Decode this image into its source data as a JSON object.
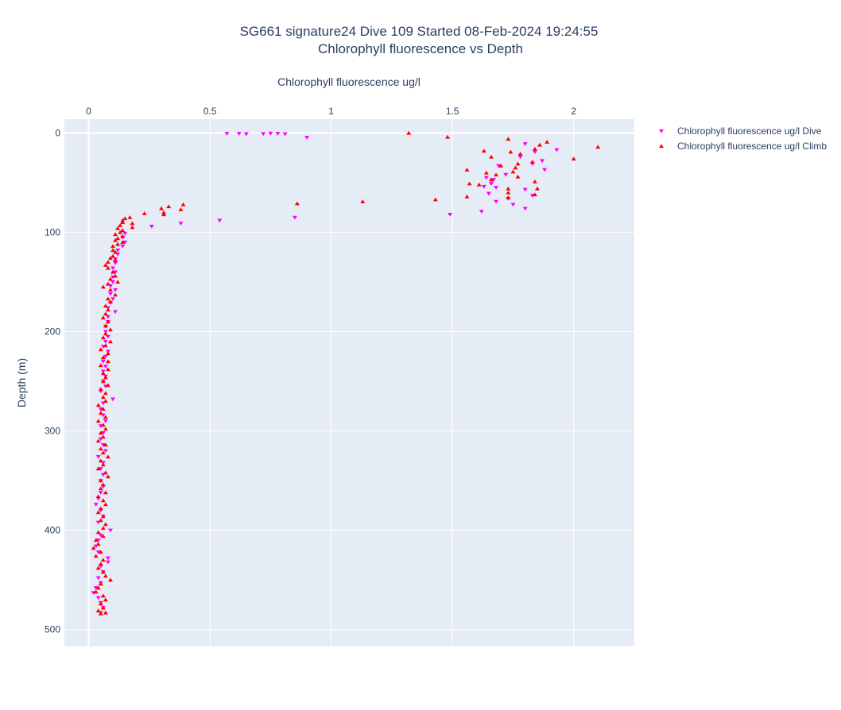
{
  "chart_data": {
    "type": "scatter",
    "title_line1": "SG661 signature24 Dive 109 Started 08-Feb-2024 19:24:55",
    "title_line2": "Chlorophyll fluorescence vs Depth",
    "xlabel": "Chlorophyll fluorescence ug/l",
    "ylabel": "Depth (m)",
    "xlim": [
      -0.1,
      2.25
    ],
    "ylim": [
      517,
      -14
    ],
    "x_ticks": [
      0,
      0.5,
      1,
      1.5,
      2
    ],
    "x_tick_labels": [
      "0",
      "0.5",
      "1",
      "1.5",
      "2"
    ],
    "y_ticks": [
      0,
      100,
      200,
      300,
      400,
      500
    ],
    "y_tick_labels": [
      "0",
      "100",
      "200",
      "300",
      "400",
      "500"
    ],
    "x_axis_side": "top",
    "y_reversed": true,
    "grid": true,
    "legend_position": "top-right",
    "plot_background": "#e5ecf6",
    "series": [
      {
        "name": "Chlorophyll fluorescence ug/l Dive",
        "marker": "triangle-down",
        "color": "#ff00ff",
        "points": [
          [
            0.57,
            0.6
          ],
          [
            0.62,
            0.6
          ],
          [
            0.65,
            1.0
          ],
          [
            0.72,
            0.8
          ],
          [
            0.75,
            0.4
          ],
          [
            0.78,
            0.6
          ],
          [
            0.81,
            1.0
          ],
          [
            0.9,
            4.5
          ],
          [
            1.8,
            11
          ],
          [
            1.84,
            19
          ],
          [
            1.93,
            17
          ],
          [
            1.78,
            24
          ],
          [
            1.87,
            28
          ],
          [
            1.83,
            31
          ],
          [
            1.69,
            33
          ],
          [
            1.88,
            37
          ],
          [
            1.72,
            42
          ],
          [
            1.64,
            45
          ],
          [
            1.67,
            47
          ],
          [
            1.66,
            51
          ],
          [
            1.63,
            54
          ],
          [
            1.68,
            55
          ],
          [
            1.8,
            57
          ],
          [
            1.65,
            61
          ],
          [
            1.83,
            63
          ],
          [
            1.73,
            66
          ],
          [
            1.68,
            69
          ],
          [
            1.75,
            72
          ],
          [
            1.8,
            76
          ],
          [
            1.62,
            79
          ],
          [
            1.49,
            82
          ],
          [
            0.85,
            85
          ],
          [
            0.54,
            88
          ],
          [
            0.38,
            91
          ],
          [
            0.26,
            94
          ],
          [
            0.15,
            101
          ],
          [
            0.14,
            105
          ],
          [
            0.15,
            110
          ],
          [
            0.14,
            114
          ],
          [
            0.12,
            118
          ],
          [
            0.12,
            122
          ],
          [
            0.11,
            127
          ],
          [
            0.11,
            131
          ],
          [
            0.1,
            136
          ],
          [
            0.11,
            140
          ],
          [
            0.1,
            145
          ],
          [
            0.1,
            150
          ],
          [
            0.09,
            154
          ],
          [
            0.11,
            158
          ],
          [
            0.09,
            162
          ],
          [
            0.1,
            167
          ],
          [
            0.09,
            171
          ],
          [
            0.08,
            176
          ],
          [
            0.11,
            180
          ],
          [
            0.08,
            185
          ],
          [
            0.08,
            190
          ],
          [
            0.07,
            195
          ],
          [
            0.07,
            200
          ],
          [
            0.08,
            205
          ],
          [
            0.07,
            210
          ],
          [
            0.06,
            215
          ],
          [
            0.08,
            220
          ],
          [
            0.07,
            225
          ],
          [
            0.06,
            230
          ],
          [
            0.07,
            235
          ],
          [
            0.06,
            240
          ],
          [
            0.07,
            245
          ],
          [
            0.06,
            250
          ],
          [
            0.07,
            255
          ],
          [
            0.05,
            260
          ],
          [
            0.1,
            268
          ],
          [
            0.06,
            272
          ],
          [
            0.05,
            278
          ],
          [
            0.06,
            284
          ],
          [
            0.07,
            290
          ],
          [
            0.05,
            295
          ],
          [
            0.06,
            302
          ],
          [
            0.05,
            308
          ],
          [
            0.06,
            314
          ],
          [
            0.07,
            320
          ],
          [
            0.04,
            326
          ],
          [
            0.06,
            332
          ],
          [
            0.05,
            338
          ],
          [
            0.06,
            344
          ],
          [
            0.05,
            350
          ],
          [
            0.06,
            356
          ],
          [
            0.05,
            362
          ],
          [
            0.04,
            368
          ],
          [
            0.03,
            374
          ],
          [
            0.05,
            380
          ],
          [
            0.06,
            386
          ],
          [
            0.04,
            392
          ],
          [
            0.09,
            400
          ],
          [
            0.05,
            405
          ],
          [
            0.04,
            410
          ],
          [
            0.03,
            416
          ],
          [
            0.04,
            422
          ],
          [
            0.08,
            428
          ],
          [
            0.08,
            432
          ],
          [
            0.05,
            436
          ],
          [
            0.06,
            442
          ],
          [
            0.04,
            448
          ],
          [
            0.05,
            453
          ],
          [
            0.03,
            458
          ],
          [
            0.02,
            463
          ],
          [
            0.04,
            468
          ],
          [
            0.05,
            473
          ],
          [
            0.06,
            478
          ],
          [
            0.05,
            483
          ]
        ]
      },
      {
        "name": "Chlorophyll fluorescence ug/l Climb",
        "marker": "triangle-up",
        "color": "#ff0000",
        "points": [
          [
            1.32,
            0
          ],
          [
            1.48,
            4
          ],
          [
            1.73,
            6
          ],
          [
            1.89,
            9
          ],
          [
            1.86,
            12
          ],
          [
            2.1,
            14
          ],
          [
            1.84,
            16
          ],
          [
            1.63,
            18
          ],
          [
            1.74,
            19
          ],
          [
            1.78,
            21
          ],
          [
            1.66,
            24
          ],
          [
            2.0,
            26
          ],
          [
            1.83,
            29
          ],
          [
            1.77,
            31
          ],
          [
            1.7,
            33
          ],
          [
            1.76,
            35
          ],
          [
            1.56,
            37
          ],
          [
            1.64,
            40
          ],
          [
            1.75,
            39
          ],
          [
            1.68,
            42
          ],
          [
            1.77,
            44
          ],
          [
            1.66,
            47
          ],
          [
            1.84,
            49
          ],
          [
            1.57,
            51
          ],
          [
            1.61,
            52
          ],
          [
            1.73,
            56
          ],
          [
            1.85,
            56
          ],
          [
            1.73,
            60
          ],
          [
            1.84,
            62
          ],
          [
            1.56,
            64
          ],
          [
            1.73,
            65
          ],
          [
            1.43,
            67
          ],
          [
            1.13,
            69
          ],
          [
            0.86,
            71
          ],
          [
            0.39,
            72
          ],
          [
            0.33,
            74
          ],
          [
            0.3,
            76
          ],
          [
            0.38,
            77
          ],
          [
            0.31,
            80
          ],
          [
            0.23,
            81
          ],
          [
            0.31,
            82
          ],
          [
            0.17,
            85
          ],
          [
            0.15,
            86
          ],
          [
            0.14,
            88
          ],
          [
            0.14,
            90
          ],
          [
            0.18,
            91
          ],
          [
            0.13,
            93
          ],
          [
            0.18,
            95
          ],
          [
            0.12,
            96
          ],
          [
            0.14,
            98
          ],
          [
            0.13,
            100
          ],
          [
            0.11,
            102
          ],
          [
            0.14,
            104
          ],
          [
            0.12,
            106
          ],
          [
            0.11,
            108
          ],
          [
            0.14,
            110
          ],
          [
            0.12,
            112
          ],
          [
            0.1,
            114
          ],
          [
            0.1,
            118
          ],
          [
            0.11,
            120
          ],
          [
            0.1,
            124
          ],
          [
            0.09,
            126
          ],
          [
            0.11,
            128
          ],
          [
            0.08,
            130
          ],
          [
            0.07,
            133
          ],
          [
            0.08,
            136
          ],
          [
            0.1,
            140
          ],
          [
            0.11,
            144
          ],
          [
            0.09,
            147
          ],
          [
            0.12,
            150
          ],
          [
            0.08,
            152
          ],
          [
            0.06,
            155
          ],
          [
            0.09,
            158
          ],
          [
            0.11,
            163
          ],
          [
            0.08,
            167
          ],
          [
            0.09,
            170
          ],
          [
            0.07,
            174
          ],
          [
            0.08,
            178
          ],
          [
            0.07,
            182
          ],
          [
            0.06,
            186
          ],
          [
            0.08,
            190
          ],
          [
            0.07,
            194
          ],
          [
            0.09,
            198
          ],
          [
            0.07,
            202
          ],
          [
            0.06,
            206
          ],
          [
            0.09,
            210
          ],
          [
            0.07,
            214
          ],
          [
            0.05,
            218
          ],
          [
            0.08,
            222
          ],
          [
            0.06,
            226
          ],
          [
            0.08,
            230
          ],
          [
            0.05,
            234
          ],
          [
            0.08,
            238
          ],
          [
            0.06,
            242
          ],
          [
            0.07,
            246
          ],
          [
            0.06,
            250
          ],
          [
            0.08,
            254
          ],
          [
            0.05,
            258
          ],
          [
            0.07,
            262
          ],
          [
            0.06,
            266
          ],
          [
            0.07,
            270
          ],
          [
            0.04,
            274
          ],
          [
            0.06,
            278
          ],
          [
            0.05,
            282
          ],
          [
            0.07,
            286
          ],
          [
            0.04,
            290
          ],
          [
            0.06,
            294
          ],
          [
            0.07,
            298
          ],
          [
            0.05,
            302
          ],
          [
            0.06,
            306
          ],
          [
            0.04,
            310
          ],
          [
            0.07,
            314
          ],
          [
            0.05,
            318
          ],
          [
            0.06,
            322
          ],
          [
            0.08,
            326
          ],
          [
            0.05,
            330
          ],
          [
            0.06,
            334
          ],
          [
            0.04,
            338
          ],
          [
            0.07,
            342
          ],
          [
            0.08,
            346
          ],
          [
            0.05,
            350
          ],
          [
            0.06,
            354
          ],
          [
            0.05,
            358
          ],
          [
            0.07,
            362
          ],
          [
            0.04,
            366
          ],
          [
            0.06,
            370
          ],
          [
            0.07,
            374
          ],
          [
            0.05,
            378
          ],
          [
            0.04,
            382
          ],
          [
            0.06,
            386
          ],
          [
            0.05,
            390
          ],
          [
            0.07,
            394
          ],
          [
            0.06,
            398
          ],
          [
            0.04,
            402
          ],
          [
            0.06,
            406
          ],
          [
            0.03,
            410
          ],
          [
            0.04,
            414
          ],
          [
            0.02,
            418
          ],
          [
            0.05,
            422
          ],
          [
            0.03,
            426
          ],
          [
            0.06,
            430
          ],
          [
            0.05,
            434
          ],
          [
            0.04,
            438
          ],
          [
            0.06,
            442
          ],
          [
            0.07,
            446
          ],
          [
            0.09,
            450
          ],
          [
            0.05,
            454
          ],
          [
            0.04,
            458
          ],
          [
            0.03,
            462
          ],
          [
            0.06,
            466
          ],
          [
            0.07,
            470
          ],
          [
            0.05,
            474
          ],
          [
            0.06,
            478
          ],
          [
            0.04,
            481
          ],
          [
            0.07,
            483
          ],
          [
            0.05,
            484
          ]
        ]
      }
    ]
  }
}
